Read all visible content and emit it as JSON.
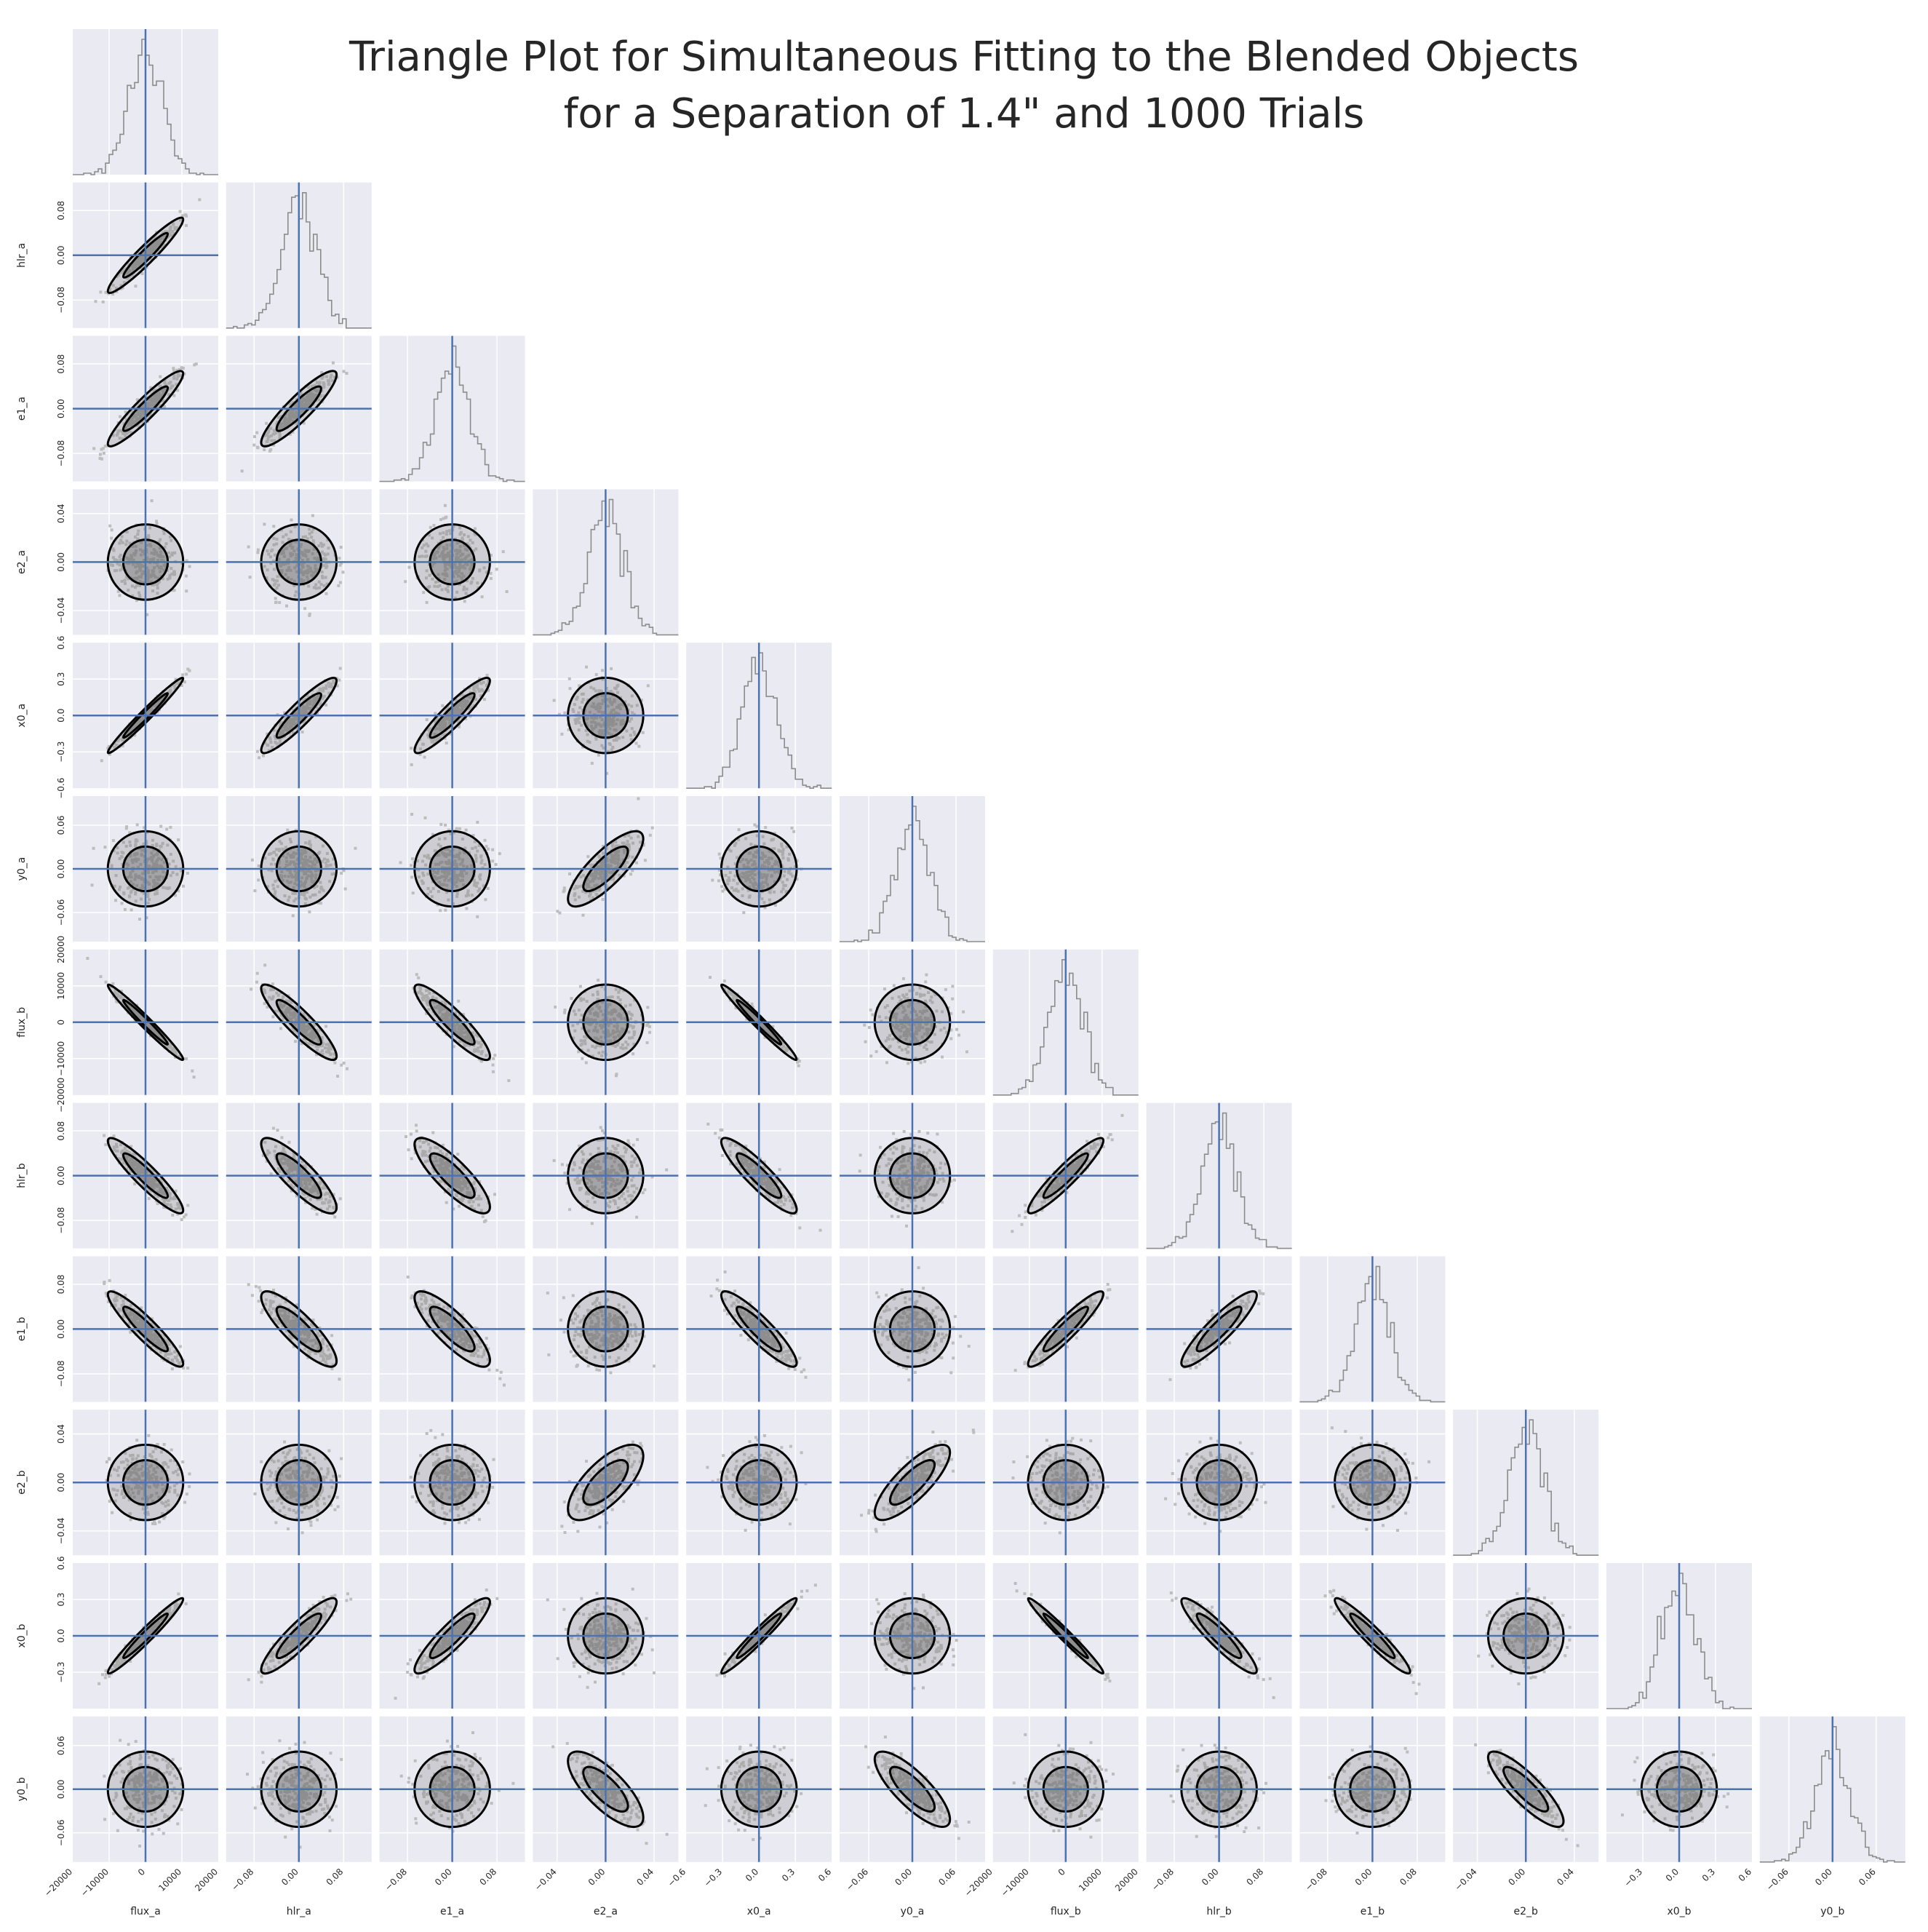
{
  "chart_data": {
    "type": "corner",
    "title": [
      "Triangle Plot for Simultaneous Fitting to the Blended Objects",
      "for a Separation of 1.4\" and 1000 Trials"
    ],
    "parameters": [
      "flux_a",
      "hlr_a",
      "e1_a",
      "e2_a",
      "x0_a",
      "y0_a",
      "flux_b",
      "hlr_b",
      "e1_b",
      "e2_b",
      "x0_b",
      "y0_b"
    ],
    "truth_values": [
      0,
      0,
      0,
      0,
      0,
      0,
      0,
      0,
      0,
      0,
      0,
      0
    ],
    "ranges": [
      [
        -20000,
        20000
      ],
      [
        -0.13,
        0.13
      ],
      [
        -0.13,
        0.13
      ],
      [
        -0.06,
        0.06
      ],
      [
        -0.6,
        0.6
      ],
      [
        -0.1,
        0.1
      ],
      [
        -20000,
        20000
      ],
      [
        -0.13,
        0.13
      ],
      [
        -0.13,
        0.13
      ],
      [
        -0.06,
        0.06
      ],
      [
        -0.6,
        0.6
      ],
      [
        -0.1,
        0.1
      ]
    ],
    "ticks": [
      {
        "values": [
          -20000,
          -10000,
          0,
          10000,
          20000
        ],
        "labels": [
          "−20000",
          "−10000",
          "0",
          "10000",
          "20000"
        ]
      },
      {
        "values": [
          -0.08,
          0,
          0.08
        ],
        "labels": [
          "−0.08",
          "0.00",
          "0.08"
        ]
      },
      {
        "values": [
          -0.08,
          0,
          0.08
        ],
        "labels": [
          "−0.08",
          "0.00",
          "0.08"
        ]
      },
      {
        "values": [
          -0.04,
          0,
          0.04
        ],
        "labels": [
          "−0.04",
          "0.00",
          "0.04"
        ]
      },
      {
        "values": [
          -0.6,
          -0.3,
          0,
          0.3,
          0.6
        ],
        "labels": [
          "−0.6",
          "−0.3",
          "0.0",
          "0.3",
          "0.6"
        ]
      },
      {
        "values": [
          -0.06,
          0,
          0.06
        ],
        "labels": [
          "−0.06",
          "0.00",
          "0.06"
        ]
      },
      {
        "values": [
          -20000,
          -10000,
          0,
          10000,
          20000
        ],
        "labels": [
          "−20000",
          "−10000",
          "0",
          "10000",
          "20000"
        ]
      },
      {
        "values": [
          -0.08,
          0,
          0.08
        ],
        "labels": [
          "−0.08",
          "0.00",
          "0.08"
        ]
      },
      {
        "values": [
          -0.08,
          0,
          0.08
        ],
        "labels": [
          "−0.08",
          "0.00",
          "0.08"
        ]
      },
      {
        "values": [
          -0.04,
          0,
          0.04
        ],
        "labels": [
          "−0.04",
          "0.00",
          "0.04"
        ]
      },
      {
        "values": [
          -0.3,
          0,
          0.3,
          0.6
        ],
        "labels": [
          "−0.3",
          "0.0",
          "0.3",
          "0.6"
        ]
      },
      {
        "values": [
          -0.06,
          0,
          0.06
        ],
        "labels": [
          "−0.06",
          "0.00",
          "0.06"
        ]
      }
    ],
    "correlation": [
      [
        1.0,
        0.95,
        0.93,
        0.0,
        0.98,
        0.0,
        -0.98,
        -0.92,
        -0.92,
        0.0,
        0.97,
        0.0
      ],
      [
        0.95,
        1.0,
        0.9,
        0.0,
        0.92,
        0.0,
        -0.9,
        -0.85,
        -0.85,
        0.0,
        0.9,
        0.0
      ],
      [
        0.93,
        0.9,
        1.0,
        0.0,
        0.92,
        0.0,
        -0.9,
        -0.83,
        -0.83,
        0.0,
        0.9,
        0.0
      ],
      [
        0.0,
        0.0,
        0.0,
        1.0,
        0.0,
        0.8,
        0.0,
        0.0,
        0.0,
        0.7,
        0.0,
        -0.75
      ],
      [
        0.98,
        0.92,
        0.92,
        0.0,
        1.0,
        0.0,
        -0.98,
        -0.9,
        -0.9,
        0.0,
        0.97,
        0.0
      ],
      [
        0.0,
        0.0,
        0.0,
        0.8,
        0.0,
        1.0,
        0.0,
        0.0,
        0.0,
        0.8,
        0.0,
        -0.8
      ],
      [
        -0.98,
        -0.9,
        -0.9,
        0.0,
        -0.98,
        0.0,
        1.0,
        0.93,
        0.93,
        0.0,
        -0.98,
        0.0
      ],
      [
        -0.92,
        -0.85,
        -0.83,
        0.0,
        -0.9,
        0.0,
        0.93,
        1.0,
        0.9,
        0.0,
        -0.92,
        0.0
      ],
      [
        -0.92,
        -0.85,
        -0.83,
        0.0,
        -0.9,
        0.0,
        0.93,
        0.9,
        1.0,
        0.0,
        -0.95,
        0.0
      ],
      [
        0.0,
        0.0,
        0.0,
        0.7,
        0.0,
        0.8,
        0.0,
        0.0,
        0.0,
        1.0,
        0.0,
        -0.85
      ],
      [
        0.97,
        0.9,
        0.9,
        0.0,
        0.97,
        0.0,
        -0.98,
        -0.92,
        -0.95,
        0.0,
        1.0,
        0.0
      ],
      [
        0.0,
        0.0,
        0.0,
        -0.75,
        0.0,
        -0.8,
        0.0,
        0.0,
        0.0,
        -0.85,
        0.0,
        1.0
      ]
    ],
    "trials": 1000,
    "grid": true,
    "colors": {
      "panel": "#eaeaf2",
      "grid": "#ffffff",
      "truth": "#4c72b0",
      "hist": "#8c8c8c",
      "points": "#bdbdbd",
      "contour": "#000000",
      "fill": "#777777"
    }
  }
}
